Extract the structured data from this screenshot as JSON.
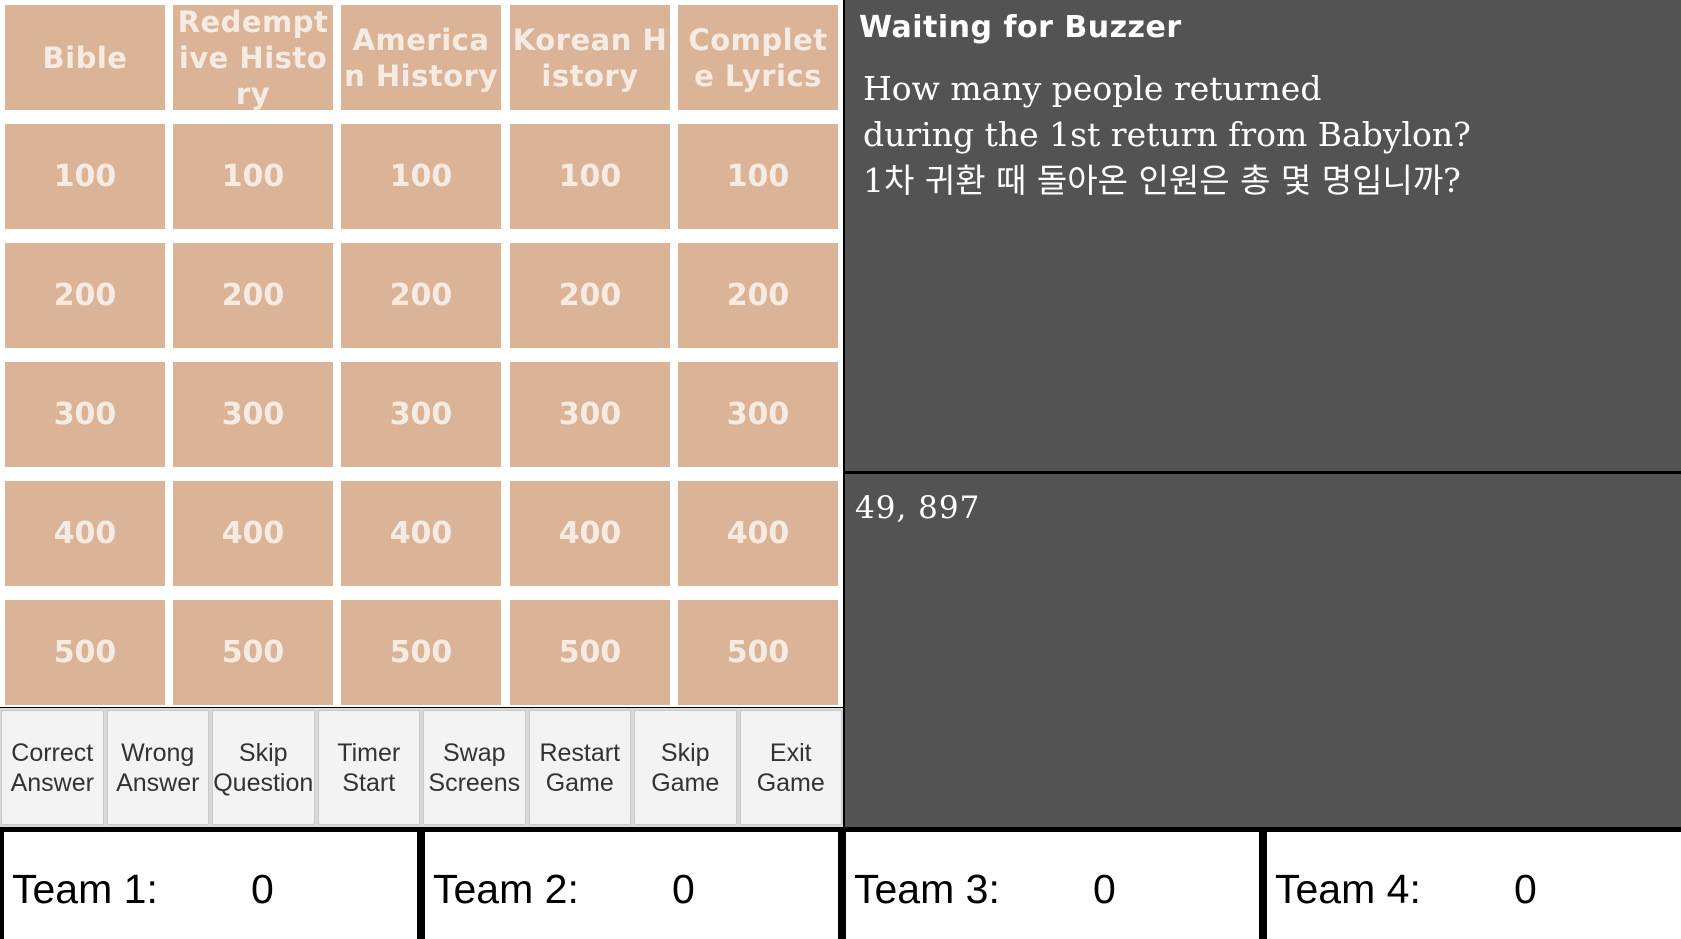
{
  "board": {
    "categories": [
      "Bible",
      "Redemptive History",
      "American History",
      "Korean History",
      "Complete Lyrics"
    ],
    "values": [
      "100",
      "200",
      "300",
      "400",
      "500"
    ]
  },
  "controls": [
    {
      "name": "correct-answer-button",
      "label": "Correct\nAnswer"
    },
    {
      "name": "wrong-answer-button",
      "label": "Wrong\nAnswer"
    },
    {
      "name": "skip-question-button",
      "label": "Skip\nQuestion"
    },
    {
      "name": "timer-start-button",
      "label": "Timer\nStart"
    },
    {
      "name": "swap-screens-button",
      "label": "Swap\nScreens"
    },
    {
      "name": "restart-game-button",
      "label": "Restart\nGame"
    },
    {
      "name": "skip-game-button",
      "label": "Skip\nGame"
    },
    {
      "name": "exit-game-button",
      "label": "Exit\nGame"
    }
  ],
  "question_panel": {
    "status": "Waiting for Buzzer",
    "question": "How many people returned\nduring the 1st return from Babylon?\n1차 귀환 때 돌아온 인원은 총 몇 명입니까?"
  },
  "answer_panel": {
    "answer": "49, 897"
  },
  "teams": [
    {
      "name": "Team 1:",
      "score": "0"
    },
    {
      "name": "Team 2:",
      "score": "0"
    },
    {
      "name": "Team 3:",
      "score": "0"
    },
    {
      "name": "Team 4:",
      "score": "0"
    }
  ],
  "colors": {
    "tile": "#dbb497",
    "tile_text": "#f6ebe2",
    "panel": "#535353"
  }
}
